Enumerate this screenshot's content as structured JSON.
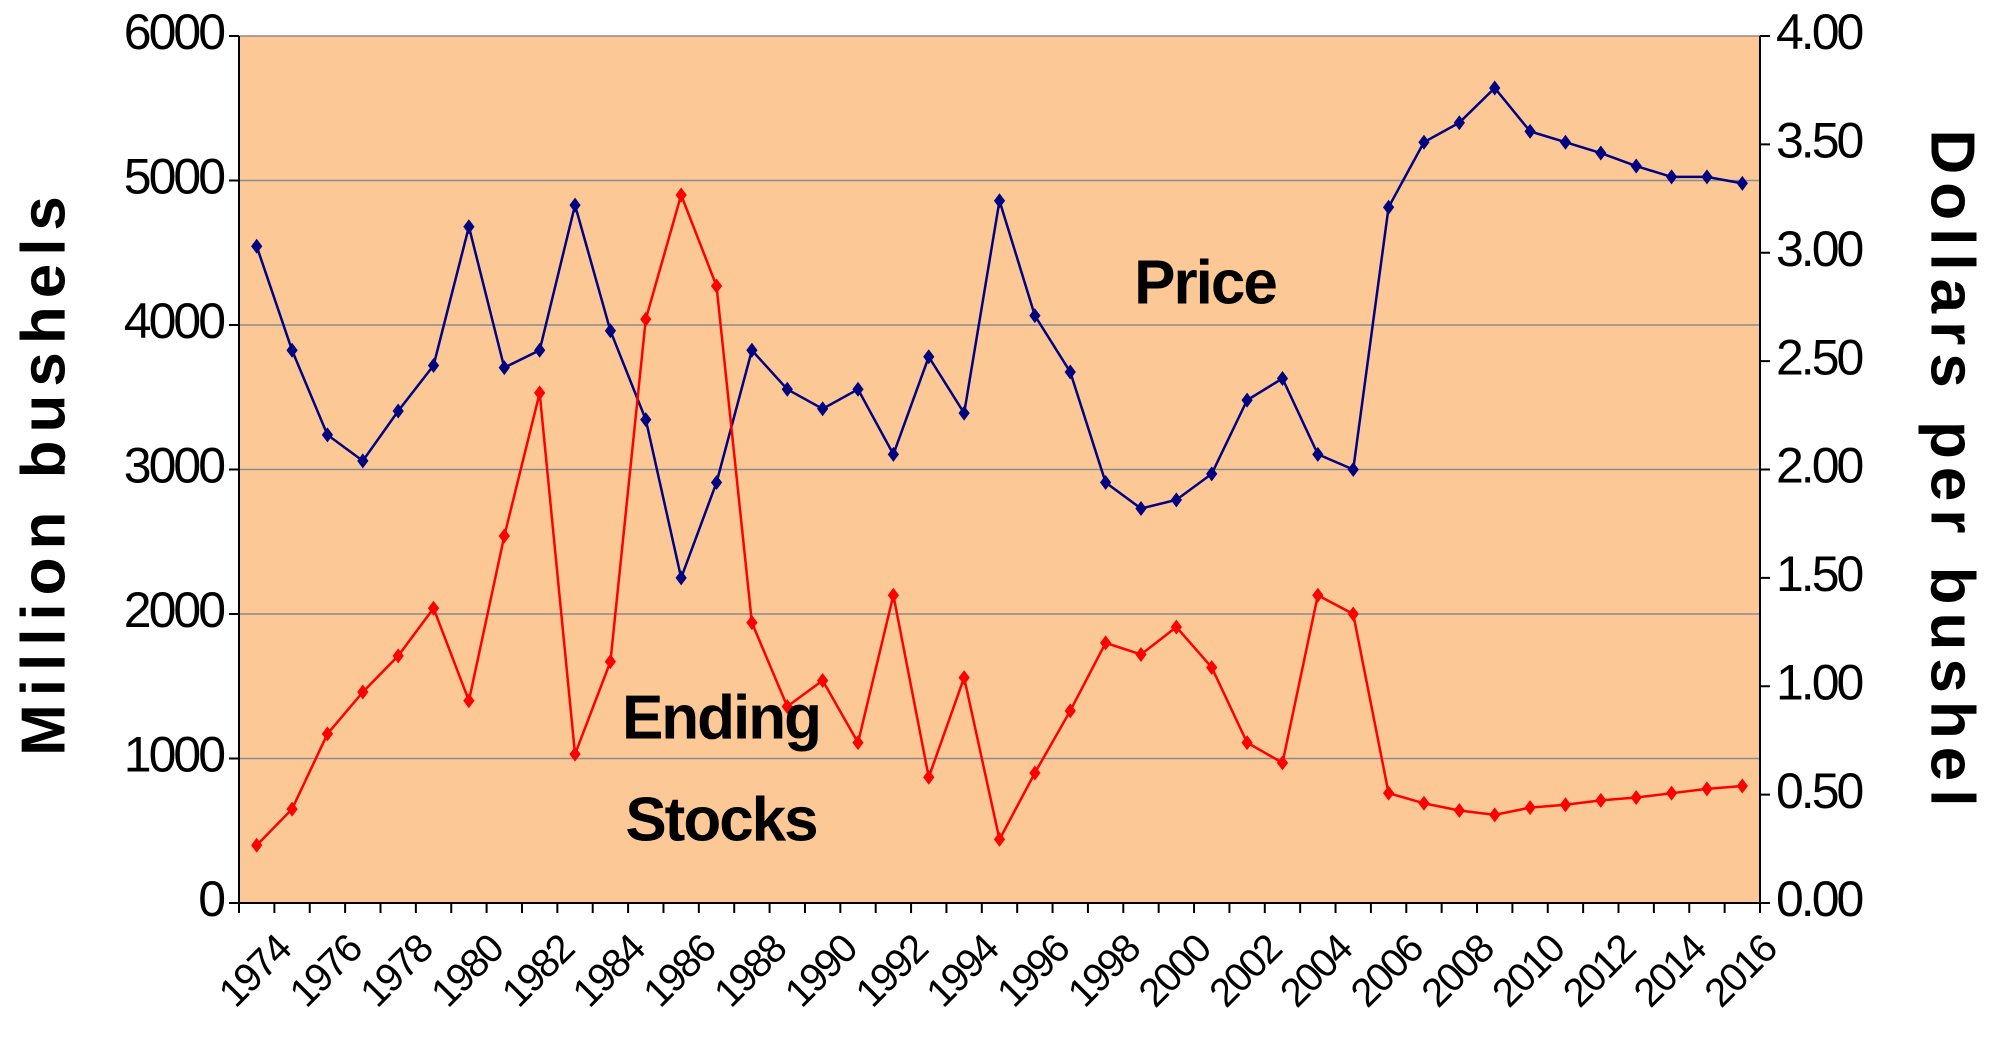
{
  "chart_data": {
    "type": "line",
    "y_label": "Million bushels",
    "y2_label": "Dollars per bushel",
    "annotations": [
      {
        "lines": [
          "Price"
        ],
        "series": 0
      },
      {
        "lines": [
          "Ending",
          "Stocks"
        ],
        "series": 1
      }
    ],
    "categories": [
      1974,
      null,
      1976,
      null,
      1978,
      null,
      1980,
      null,
      1982,
      null,
      1984,
      null,
      1986,
      null,
      1988,
      null,
      1990,
      null,
      1992,
      null,
      1994,
      null,
      1996,
      null,
      1998,
      null,
      2000,
      null,
      2002,
      null,
      2004,
      null,
      2006,
      null,
      2008,
      null,
      2010,
      null,
      2012,
      null,
      2014,
      null,
      2016
    ],
    "series": [
      {
        "name": "Price",
        "color": "#000080",
        "axis": "y2",
        "values": [
          3.03,
          2.55,
          2.16,
          2.04,
          2.27,
          2.48,
          3.12,
          2.47,
          2.55,
          3.22,
          2.64,
          2.23,
          1.5,
          1.94,
          2.55,
          2.37,
          2.28,
          2.37,
          2.07,
          2.52,
          2.26,
          3.24,
          2.71,
          2.45,
          1.94,
          1.82,
          1.86,
          1.98,
          2.32,
          2.42,
          2.07,
          2.0,
          3.21,
          3.51,
          3.6,
          3.76,
          3.56,
          3.51,
          3.46,
          3.4,
          3.35,
          3.35,
          3.32
        ]
      },
      {
        "name": "Ending Stocks",
        "color": "#ff0000",
        "values": [
          400,
          650,
          1170,
          1460,
          1710,
          2040,
          1400,
          2540,
          3530,
          1030,
          1670,
          4040,
          4900,
          4270,
          1940,
          1360,
          1540,
          1110,
          2130,
          870,
          1560,
          440,
          900,
          1330,
          1800,
          1720,
          1910,
          1630,
          1110,
          970,
          2130,
          2000,
          760,
          690,
          640,
          610,
          660,
          680,
          710,
          730,
          760,
          790,
          810
        ]
      }
    ],
    "ylim": [
      0,
      6000
    ],
    "yticks": [
      0,
      1000,
      2000,
      3000,
      4000,
      5000,
      6000
    ],
    "y2lim": [
      0,
      4
    ],
    "y2ticks": [
      {
        "value": 0,
        "label": "0.00"
      },
      {
        "value": 0.5,
        "label": "0.50"
      },
      {
        "value": 1,
        "label": "1.00"
      },
      {
        "value": 1.5,
        "label": "1.50"
      },
      {
        "value": 2,
        "label": "2.00"
      },
      {
        "value": 2.5,
        "label": "2.50"
      },
      {
        "value": 3,
        "label": "3.00"
      },
      {
        "value": 3.5,
        "label": "3.50"
      },
      {
        "value": 4,
        "label": "4.00"
      }
    ],
    "grid": true,
    "background": "#fbc896"
  }
}
